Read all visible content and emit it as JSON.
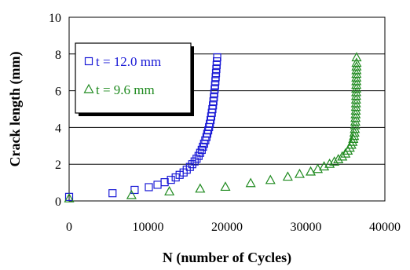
{
  "chart_data": {
    "type": "scatter",
    "title": "",
    "xlabel": "N (number of Cycles)",
    "ylabel": "Crack length (mm)",
    "xlim": [
      0,
      40000
    ],
    "ylim": [
      0,
      10
    ],
    "x_ticks": [
      "0",
      "10000",
      "20000",
      "30000",
      "40000"
    ],
    "y_ticks": [
      "0",
      "2",
      "4",
      "6",
      "8",
      "10"
    ],
    "grid": "horizontal",
    "legend_position": "top-left (inside plot)",
    "series": [
      {
        "name": "t = 12.0 mm",
        "marker": "square",
        "color": "#1a1ad6",
        "points": [
          [
            0,
            0.22
          ],
          [
            5500,
            0.42
          ],
          [
            8300,
            0.6
          ],
          [
            10100,
            0.75
          ],
          [
            11200,
            0.88
          ],
          [
            12100,
            1.02
          ],
          [
            12900,
            1.15
          ],
          [
            13500,
            1.28
          ],
          [
            14000,
            1.42
          ],
          [
            14500,
            1.55
          ],
          [
            14900,
            1.7
          ],
          [
            15300,
            1.85
          ],
          [
            15600,
            2.0
          ],
          [
            15900,
            2.15
          ],
          [
            16150,
            2.3
          ],
          [
            16400,
            2.45
          ],
          [
            16600,
            2.62
          ],
          [
            16800,
            2.78
          ],
          [
            16950,
            2.95
          ],
          [
            17100,
            3.12
          ],
          [
            17250,
            3.3
          ],
          [
            17400,
            3.48
          ],
          [
            17500,
            3.66
          ],
          [
            17620,
            3.84
          ],
          [
            17730,
            4.02
          ],
          [
            17830,
            4.2
          ],
          [
            17920,
            4.4
          ],
          [
            18000,
            4.6
          ],
          [
            18080,
            4.8
          ],
          [
            18150,
            5.0
          ],
          [
            18220,
            5.2
          ],
          [
            18280,
            5.42
          ],
          [
            18340,
            5.64
          ],
          [
            18390,
            5.86
          ],
          [
            18440,
            6.08
          ],
          [
            18490,
            6.3
          ],
          [
            18530,
            6.52
          ],
          [
            18570,
            6.74
          ],
          [
            18610,
            6.96
          ],
          [
            18650,
            7.18
          ],
          [
            18690,
            7.4
          ],
          [
            18720,
            7.6
          ],
          [
            18760,
            7.82
          ]
        ]
      },
      {
        "name": "t = 9.6 mm",
        "marker": "triangle",
        "color": "#1f8a1f",
        "points": [
          [
            0,
            0.12
          ],
          [
            7900,
            0.3
          ],
          [
            12700,
            0.5
          ],
          [
            16600,
            0.65
          ],
          [
            19800,
            0.75
          ],
          [
            23000,
            0.95
          ],
          [
            25500,
            1.12
          ],
          [
            27700,
            1.3
          ],
          [
            29200,
            1.45
          ],
          [
            30600,
            1.58
          ],
          [
            31500,
            1.72
          ],
          [
            32300,
            1.86
          ],
          [
            33000,
            2.0
          ],
          [
            33600,
            2.12
          ],
          [
            34100,
            2.25
          ],
          [
            34600,
            2.4
          ],
          [
            35000,
            2.56
          ],
          [
            35300,
            2.72
          ],
          [
            35550,
            2.88
          ],
          [
            35750,
            3.04
          ],
          [
            35900,
            3.2
          ],
          [
            36000,
            3.36
          ],
          [
            36100,
            3.52
          ],
          [
            36150,
            3.7
          ],
          [
            36200,
            3.9
          ],
          [
            36230,
            4.1
          ],
          [
            36260,
            4.3
          ],
          [
            36280,
            4.5
          ],
          [
            36300,
            4.7
          ],
          [
            36320,
            4.9
          ],
          [
            36330,
            5.1
          ],
          [
            36340,
            5.3
          ],
          [
            36350,
            5.5
          ],
          [
            36360,
            5.7
          ],
          [
            36370,
            5.9
          ],
          [
            36375,
            6.1
          ],
          [
            36380,
            6.3
          ],
          [
            36385,
            6.5
          ],
          [
            36390,
            6.7
          ],
          [
            36395,
            6.9
          ],
          [
            36400,
            7.1
          ],
          [
            36405,
            7.3
          ],
          [
            36410,
            7.5
          ],
          [
            36415,
            7.8
          ]
        ]
      }
    ]
  }
}
